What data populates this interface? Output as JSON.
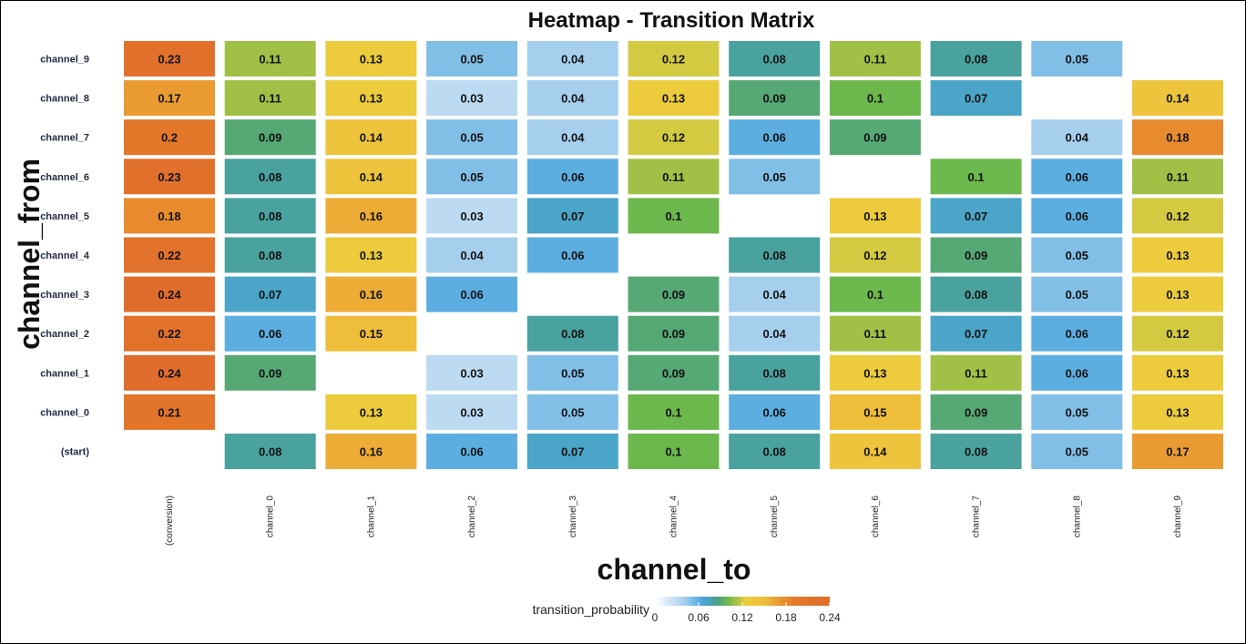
{
  "chart_data": {
    "type": "heatmap",
    "title": "Heatmap - Transition Matrix",
    "xlabel": "channel_to",
    "ylabel": "channel_from",
    "x_categories": [
      "(conversion)",
      "channel_0",
      "channel_1",
      "channel_2",
      "channel_3",
      "channel_4",
      "channel_5",
      "channel_6",
      "channel_7",
      "channel_8",
      "channel_9"
    ],
    "y_categories": [
      "channel_9",
      "channel_8",
      "channel_7",
      "channel_6",
      "channel_5",
      "channel_4",
      "channel_3",
      "channel_2",
      "channel_1",
      "channel_0",
      "(start)"
    ],
    "values": [
      [
        0.23,
        0.11,
        0.13,
        0.05,
        0.04,
        0.12,
        0.08,
        0.11,
        0.08,
        0.05,
        null
      ],
      [
        0.17,
        0.11,
        0.13,
        0.03,
        0.04,
        0.13,
        0.09,
        0.1,
        0.07,
        null,
        0.14
      ],
      [
        0.2,
        0.09,
        0.14,
        0.05,
        0.04,
        0.12,
        0.06,
        0.09,
        null,
        0.04,
        0.18
      ],
      [
        0.23,
        0.08,
        0.14,
        0.05,
        0.06,
        0.11,
        0.05,
        null,
        0.1,
        0.06,
        0.11
      ],
      [
        0.18,
        0.08,
        0.16,
        0.03,
        0.07,
        0.1,
        null,
        0.13,
        0.07,
        0.06,
        0.12
      ],
      [
        0.22,
        0.08,
        0.13,
        0.04,
        0.06,
        null,
        0.08,
        0.12,
        0.09,
        0.05,
        0.13
      ],
      [
        0.24,
        0.07,
        0.16,
        0.06,
        null,
        0.09,
        0.04,
        0.1,
        0.08,
        0.05,
        0.13
      ],
      [
        0.22,
        0.06,
        0.15,
        null,
        0.08,
        0.09,
        0.04,
        0.11,
        0.07,
        0.06,
        0.12
      ],
      [
        0.24,
        0.09,
        null,
        0.03,
        0.05,
        0.09,
        0.08,
        0.13,
        0.11,
        0.06,
        0.13
      ],
      [
        0.21,
        null,
        0.13,
        0.03,
        0.05,
        0.1,
        0.06,
        0.15,
        0.09,
        0.05,
        0.13
      ],
      [
        null,
        0.08,
        0.16,
        0.06,
        0.07,
        0.1,
        0.08,
        0.14,
        0.08,
        0.05,
        0.17
      ]
    ],
    "value_labels": [
      [
        "0.23",
        "0.11",
        "0.13",
        "0.05",
        "0.04",
        "0.12",
        "0.08",
        "0.11",
        "0.08",
        "0.05",
        ""
      ],
      [
        "0.17",
        "0.11",
        "0.13",
        "0.03",
        "0.04",
        "0.13",
        "0.09",
        "0.1",
        "0.07",
        "",
        "0.14"
      ],
      [
        "0.2",
        "0.09",
        "0.14",
        "0.05",
        "0.04",
        "0.12",
        "0.06",
        "0.09",
        "",
        "0.04",
        "0.18"
      ],
      [
        "0.23",
        "0.08",
        "0.14",
        "0.05",
        "0.06",
        "0.11",
        "0.05",
        "",
        "0.1",
        "0.06",
        "0.11"
      ],
      [
        "0.18",
        "0.08",
        "0.16",
        "0.03",
        "0.07",
        "0.1",
        "",
        "0.13",
        "0.07",
        "0.06",
        "0.12"
      ],
      [
        "0.22",
        "0.08",
        "0.13",
        "0.04",
        "0.06",
        "",
        "0.08",
        "0.12",
        "0.09",
        "0.05",
        "0.13"
      ],
      [
        "0.24",
        "0.07",
        "0.16",
        "0.06",
        "",
        "0.09",
        "0.04",
        "0.1",
        "0.08",
        "0.05",
        "0.13"
      ],
      [
        "0.22",
        "0.06",
        "0.15",
        "",
        "0.08",
        "0.09",
        "0.04",
        "0.11",
        "0.07",
        "0.06",
        "0.12"
      ],
      [
        "0.24",
        "0.09",
        "",
        "0.03",
        "0.05",
        "0.09",
        "0.08",
        "0.13",
        "0.11",
        "0.06",
        "0.13"
      ],
      [
        "0.21",
        "",
        "0.13",
        "0.03",
        "0.05",
        "0.1",
        "0.06",
        "0.15",
        "0.09",
        "0.05",
        "0.13"
      ],
      [
        "",
        "0.08",
        "0.16",
        "0.06",
        "0.07",
        "0.1",
        "0.08",
        "0.14",
        "0.08",
        "0.05",
        "0.17"
      ]
    ],
    "legend": {
      "title": "transition_probability",
      "ticks": [
        "0",
        "0.06",
        "0.12",
        "0.18",
        "0.24"
      ],
      "range": [
        0,
        0.24
      ],
      "placement": "bottom"
    },
    "color_scale": [
      {
        "value": 0.0,
        "color": "#ffffff"
      },
      {
        "value": 0.04,
        "color": "#a6cfee"
      },
      {
        "value": 0.065,
        "color": "#4aa6dd"
      },
      {
        "value": 0.085,
        "color": "#4aa08a"
      },
      {
        "value": 0.1,
        "color": "#6db84c"
      },
      {
        "value": 0.125,
        "color": "#ecce3e"
      },
      {
        "value": 0.15,
        "color": "#eebd3a"
      },
      {
        "value": 0.19,
        "color": "#e47a2a"
      },
      {
        "value": 0.24,
        "color": "#e06d2b"
      }
    ]
  }
}
